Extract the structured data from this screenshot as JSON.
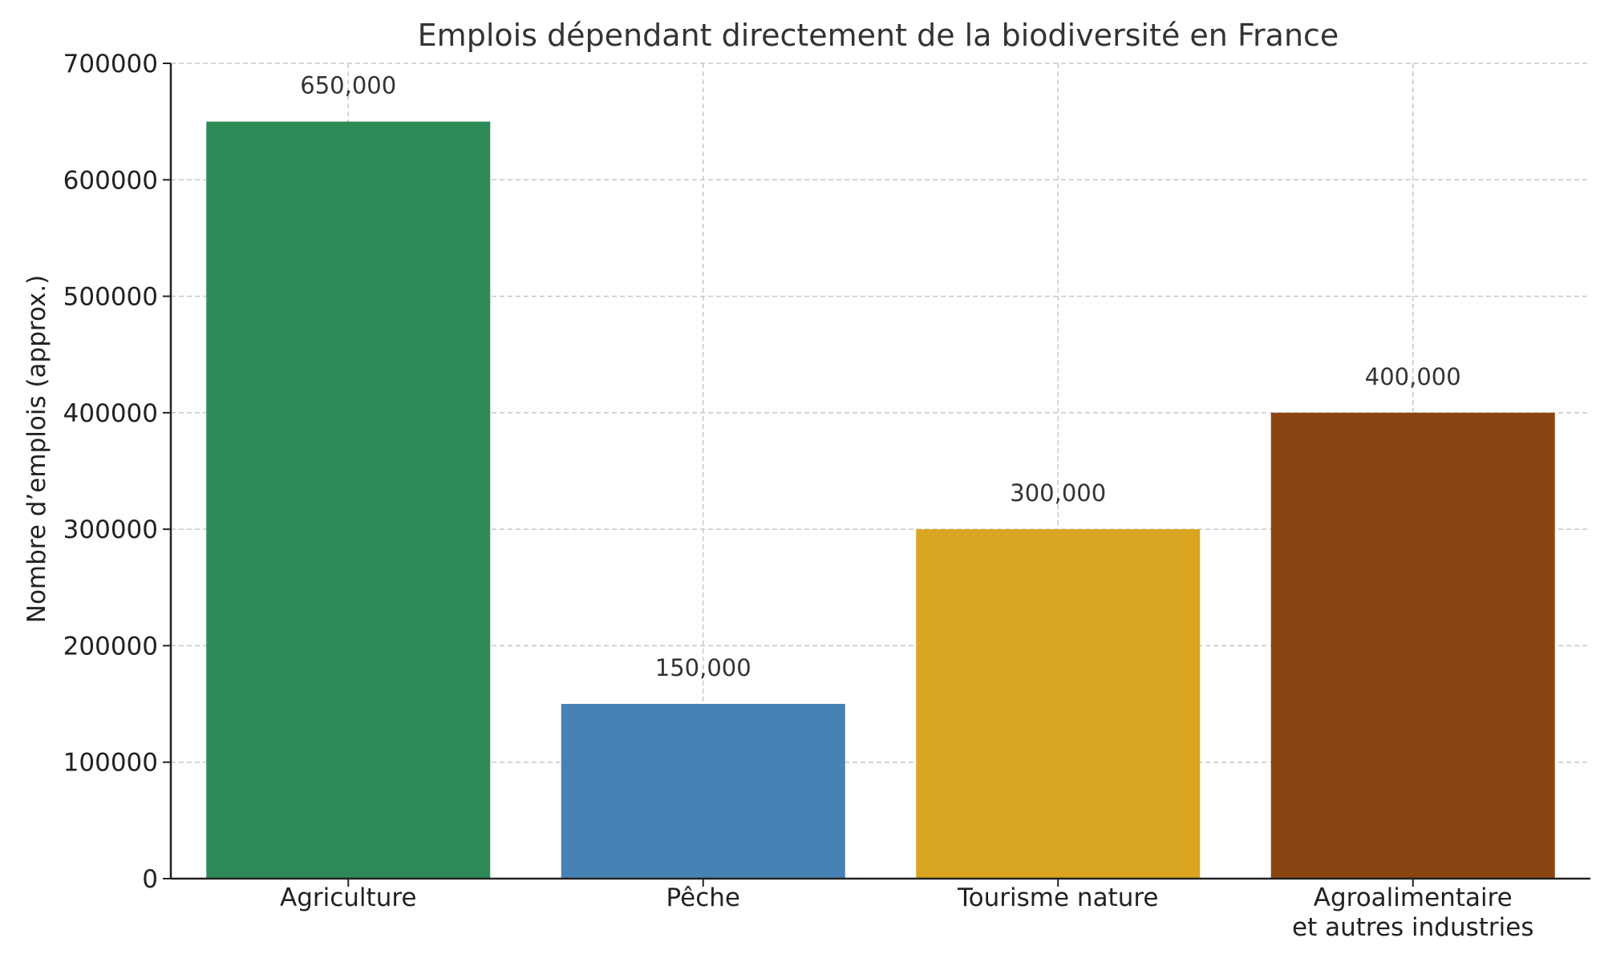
{
  "chart_data": {
    "type": "bar",
    "title": "Emplois dépendant directement de la biodiversité en France",
    "xlabel": "",
    "ylabel": "Nombre d’emplois (approx.)",
    "categories": [
      [
        "Agriculture"
      ],
      [
        "Pêche"
      ],
      [
        "Tourisme nature"
      ],
      [
        "Agroalimentaire",
        "et autres industries"
      ]
    ],
    "values": [
      650000,
      150000,
      300000,
      400000
    ],
    "data_labels": [
      "650,000",
      "150,000",
      "300,000",
      "400,000"
    ],
    "colors": [
      "#2e8b57",
      "#4682b4",
      "#daa520",
      "#8b4513"
    ],
    "ylim": [
      0,
      700000
    ],
    "yticks": [
      0,
      100000,
      200000,
      300000,
      400000,
      500000,
      600000,
      700000
    ],
    "ytick_labels": [
      "0",
      "100000",
      "200000",
      "300000",
      "400000",
      "500000",
      "600000",
      "700000"
    ],
    "grid": true,
    "legend": "none"
  }
}
